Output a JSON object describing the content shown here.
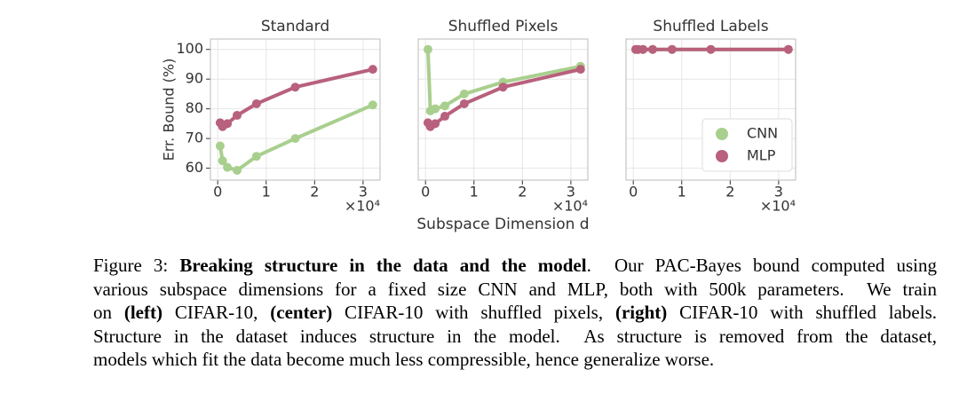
{
  "chart_data": [
    {
      "type": "line",
      "title": "Standard",
      "ylabel": "Err. Bound (%)",
      "x": [
        500,
        1000,
        2000,
        4000,
        8000,
        16000,
        32000
      ],
      "series": [
        {
          "color": "#a9cf8e",
          "values": [
            67.5,
            62.5,
            60.3,
            59.3,
            64,
            70,
            81.3
          ]
        },
        {
          "color": "#b8607c",
          "values": [
            75.3,
            74,
            75,
            77.8,
            81.7,
            87.3,
            93.3
          ]
        }
      ],
      "xlim": [
        -1500,
        33500
      ],
      "ylim": [
        56,
        103.5
      ],
      "xticks": [
        0,
        {
          "value": 10000,
          "label": "1"
        },
        {
          "value": 20000,
          "label": "2"
        },
        {
          "value": 30000,
          "label": "3"
        }
      ],
      "yticks": [
        60,
        70,
        80,
        90,
        100
      ],
      "ytick_labels": true,
      "grid": true,
      "x_offset_label": "×10⁴"
    },
    {
      "type": "line",
      "title": "Shuffled Pixels",
      "xlabel": "Subspace Dimension d",
      "x": [
        500,
        1000,
        2000,
        4000,
        8000,
        16000,
        32000
      ],
      "series": [
        {
          "color": "#a9cf8e",
          "values": [
            100,
            79.3,
            80,
            81,
            85,
            89,
            94.3
          ]
        },
        {
          "color": "#b8607c",
          "values": [
            75.3,
            74,
            75,
            77.5,
            81.7,
            87.3,
            93.3
          ]
        }
      ],
      "xlim": [
        -1500,
        33500
      ],
      "ylim": [
        56,
        103.5
      ],
      "xticks": [
        0,
        {
          "value": 10000,
          "label": "1"
        },
        {
          "value": 20000,
          "label": "2"
        },
        {
          "value": 30000,
          "label": "3"
        }
      ],
      "yticks": [
        60,
        70,
        80,
        90,
        100
      ],
      "ytick_labels": false,
      "grid": true,
      "x_offset_label": "×10⁴"
    },
    {
      "type": "line",
      "title": "Shuffled Labels",
      "legend": "lower right",
      "x": [
        500,
        1000,
        2000,
        4000,
        8000,
        16000,
        32000
      ],
      "series": [
        {
          "name": "CNN",
          "color": "#a9cf8e",
          "values": [
            100,
            100,
            100,
            100,
            100,
            100,
            100
          ]
        },
        {
          "name": "MLP",
          "color": "#b8607c",
          "values": [
            100,
            100,
            100,
            100,
            100,
            100,
            100
          ]
        }
      ],
      "xlim": [
        -1500,
        33500
      ],
      "ylim": [
        56,
        103.5
      ],
      "xticks": [
        0,
        {
          "value": 10000,
          "label": "1"
        },
        {
          "value": 20000,
          "label": "2"
        },
        {
          "value": 30000,
          "label": "3"
        }
      ],
      "yticks": [
        60,
        70,
        80,
        90,
        100
      ],
      "ytick_labels": false,
      "grid": true,
      "x_offset_label": "×10⁴"
    }
  ],
  "caption": {
    "lines": [
      [
        {
          "text": "Figure 3: ",
          "bold": false
        },
        {
          "text": "Breaking structure in the data and the model",
          "bold": true
        },
        {
          "text": ".  Our PAC-Bayes bound computed using",
          "bold": false
        }
      ],
      [
        {
          "text": "various subspace dimensions for a fixed size CNN and MLP, both with 500k parameters.  We train",
          "bold": false
        }
      ],
      [
        {
          "text": "on ",
          "bold": false
        },
        {
          "text": "(left)",
          "bold": true
        },
        {
          "text": " CIFAR-10, ",
          "bold": false
        },
        {
          "text": "(center)",
          "bold": true
        },
        {
          "text": " CIFAR-10 with shuffled pixels, ",
          "bold": false
        },
        {
          "text": "(right)",
          "bold": true
        },
        {
          "text": " CIFAR-10 with shuffled labels.",
          "bold": false
        }
      ],
      [
        {
          "text": "Structure in the dataset induces structure in the model.  As structure is removed from the dataset,",
          "bold": false
        }
      ],
      [
        {
          "text": "models which fit the data become much less compressible, hence generalize worse.",
          "bold": false
        }
      ]
    ]
  }
}
